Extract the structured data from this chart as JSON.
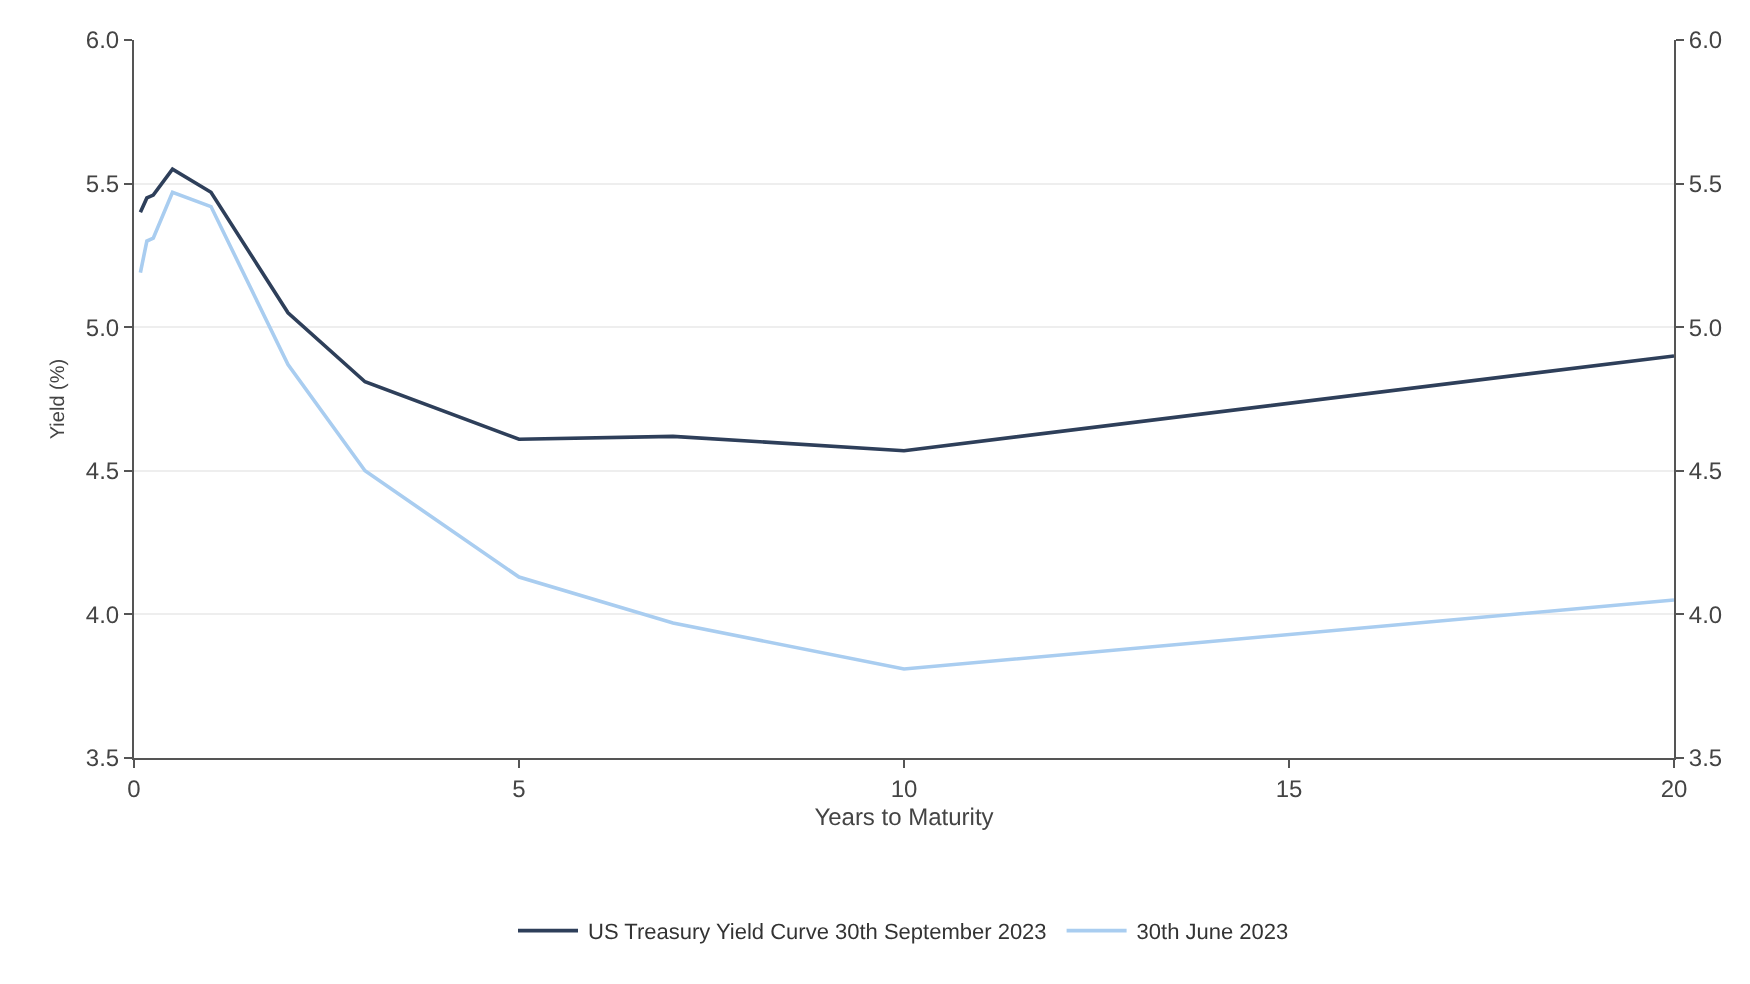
{
  "chart_data": {
    "type": "line",
    "xlabel": "Years to Maturity",
    "ylabel": "Yield (%)",
    "xlim": [
      0,
      20
    ],
    "xticks": [
      0,
      5,
      10,
      15,
      20
    ],
    "ylim": [
      3.5,
      6
    ],
    "yticks": [
      {
        "value": 3.5,
        "label": "3.5"
      },
      {
        "value": 4,
        "label": "4.0"
      },
      {
        "value": 4.5,
        "label": "4.5"
      },
      {
        "value": 5,
        "label": "5.0"
      },
      {
        "value": 5.5,
        "label": "5.5"
      },
      {
        "value": 6,
        "label": "6.0"
      }
    ],
    "y2lim": [
      3.5,
      6
    ],
    "y2ticks": [
      {
        "value": 3.5,
        "label": "3.5"
      },
      {
        "value": 4,
        "label": "4.0"
      },
      {
        "value": 4.5,
        "label": "4.5"
      },
      {
        "value": 5,
        "label": "5.0"
      },
      {
        "value": 5.5,
        "label": "5.5"
      },
      {
        "value": 6,
        "label": "6.0"
      }
    ],
    "grid": "y",
    "legend": "bottom",
    "marker": "none",
    "line_style": "solid",
    "series": [
      {
        "name": "US Treasury Yield Curve 30th September 2023",
        "color": "#2e3f5a",
        "x": [
          0.083,
          0.167,
          0.25,
          0.5,
          1,
          2,
          3,
          5,
          7,
          10,
          20
        ],
        "values": [
          5.4,
          5.45,
          5.46,
          5.55,
          5.47,
          5.05,
          4.81,
          4.61,
          4.62,
          4.57,
          4.9
        ]
      },
      {
        "name": "30th June 2023",
        "color": "#a9cdf0",
        "x": [
          0.083,
          0.167,
          0.25,
          0.5,
          1,
          2,
          3,
          5,
          7,
          10,
          20
        ],
        "values": [
          5.19,
          5.3,
          5.31,
          5.47,
          5.42,
          4.87,
          4.5,
          4.13,
          3.97,
          3.81,
          4.05
        ]
      }
    ]
  }
}
